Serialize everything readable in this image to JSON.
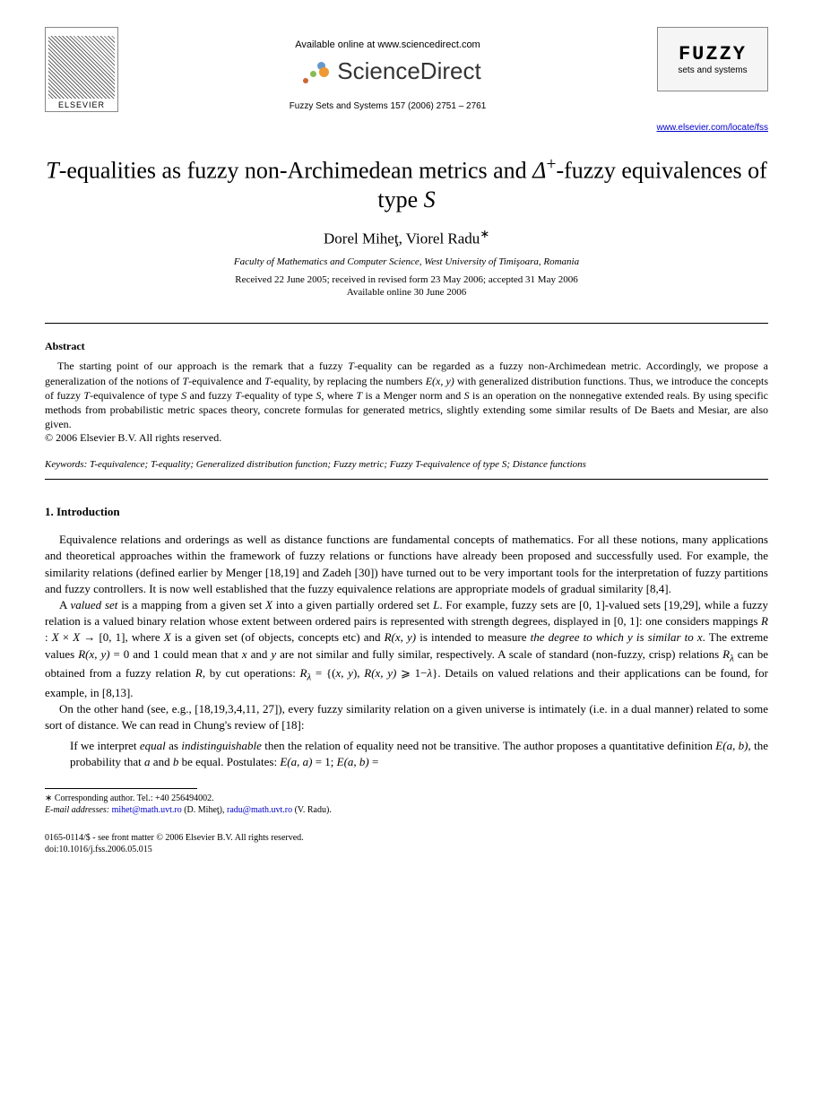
{
  "header": {
    "elsevier_label": "ELSEVIER",
    "available_online": "Available online at www.sciencedirect.com",
    "sciencedirect_label": "ScienceDirect",
    "journal_citation": "Fuzzy Sets and Systems 157 (2006) 2751 – 2761",
    "journal_logo_main": "FUZZY",
    "journal_logo_sub": "sets and systems",
    "journal_url": "www.elsevier.com/locate/fss",
    "sd_dot_colors": [
      "#6699cc",
      "#88bb55",
      "#ee9933",
      "#cc6633"
    ]
  },
  "article": {
    "title_html": "<span class=\"italic\">T</span>-equalities as fuzzy non-Archimedean metrics and <span class=\"italic\">Δ</span><sup>+</sup>-fuzzy equivalences of type <span class=\"italic\">S</span>",
    "authors_html": "Dorel Miheţ, Viorel Radu<sup>∗</sup>",
    "affiliation": "Faculty of Mathematics and Computer Science, West University of Timişoara, Romania",
    "received": "Received 22 June 2005; received in revised form 23 May 2006; accepted 31 May 2006",
    "available_online": "Available online 30 June 2006"
  },
  "abstract": {
    "heading": "Abstract",
    "text_html": "The starting point of our approach is the remark that a fuzzy <span class=\"italic\">T</span>-equality can be regarded as a fuzzy non-Archimedean metric. Accordingly, we propose a generalization of the notions of <span class=\"italic\">T</span>-equivalence and <span class=\"italic\">T</span>-equality, by replacing the numbers <span class=\"italic\">E(x, y)</span> with generalized distribution functions. Thus, we introduce the concepts of fuzzy <span class=\"italic\">T</span>-equivalence of type <span class=\"italic\">S</span> and fuzzy <span class=\"italic\">T</span>-equality of type <span class=\"italic\">S</span>, where <span class=\"italic\">T</span> is a Menger norm and <span class=\"italic\">S</span> is an operation on the nonnegative extended reals. By using specific methods from probabilistic metric spaces theory, concrete formulas for generated metrics, slightly extending some similar results of De Baets and Mesiar, are also given.",
    "copyright": "© 2006 Elsevier B.V. All rights reserved.",
    "keywords_html": "<span class=\"italic\">Keywords:</span> <span class=\"italic\">T</span>-equivalence; <span class=\"italic\">T</span>-equality; Generalized distribution function; Fuzzy metric; Fuzzy <span class=\"italic\">T</span>-equivalence of type <span class=\"italic\">S</span>; Distance functions"
  },
  "section1": {
    "heading": "1. Introduction",
    "para1_html": "Equivalence relations and orderings as well as distance functions are fundamental concepts of mathematics. For all these notions, many applications and theoretical approaches within the framework of fuzzy relations or functions have already been proposed and successfully used. For example, the similarity relations (defined earlier by Menger [18,19] and Zadeh [30]) have turned out to be very important tools for the interpretation of fuzzy partitions and fuzzy controllers. It is now well established that the fuzzy equivalence relations are appropriate models of gradual similarity [8,4].",
    "para2_html": "A <span class=\"italic\">valued set</span> is a mapping from a given set <span class=\"italic\">X</span> into a given partially ordered set <span class=\"italic\">L</span>. For example, fuzzy sets are [0, 1]-valued sets [19,29], while a fuzzy relation is a valued binary relation whose extent between ordered pairs is represented with strength degrees, displayed in [0, 1]: one considers mappings <span class=\"italic\">R</span> : <span class=\"italic\">X</span> × <span class=\"italic\">X</span> → [0, 1], where <span class=\"italic\">X</span> is a given set (of objects, concepts etc) and <span class=\"italic\">R(x, y)</span> is intended to measure <span class=\"italic\">the degree to which y is similar to x</span>. The extreme values <span class=\"italic\">R(x, y)</span> = 0 and 1 could mean that <span class=\"italic\">x</span> and <span class=\"italic\">y</span> are not similar and fully similar, respectively. A scale of standard (non-fuzzy, crisp) relations <span class=\"italic\">R<sub>λ</sub></span> can be obtained from a fuzzy relation <span class=\"italic\">R</span>, by cut operations: <span class=\"italic\">R<sub>λ</sub></span> = {(<span class=\"italic\">x, y</span>), <span class=\"italic\">R(x, y)</span> ⩾ 1−<span class=\"italic\">λ</span>}. Details on valued relations and their applications can be found, for example, in [8,13].",
    "para3_html": "On the other hand (see, e.g., [18,19,3,4,11, 27]), every fuzzy similarity relation on a given universe is intimately (i.e. in a dual manner) related to some sort of distance. We can read in Chung's review of [18]:",
    "quote_html": "If we interpret <span class=\"italic\">equal</span> as <span class=\"italic\">indistinguishable</span> then the relation of equality need not be transitive. The author proposes a quantitative definition <span class=\"italic\">E(a, b)</span>, the probability that <span class=\"italic\">a</span> and <span class=\"italic\">b</span> be equal. Postulates: <span class=\"italic\">E(a, a)</span> = 1; <span class=\"italic\">E(a, b)</span> ="
  },
  "footnotes": {
    "corresponding": "∗ Corresponding author. Tel.: +40 256494002.",
    "email_label": "E-mail addresses:",
    "email1": "mihet@math.uvt.ro",
    "email1_name": "(D. Miheţ),",
    "email2": "radu@math.uvt.ro",
    "email2_name": "(V. Radu)."
  },
  "bottom": {
    "line1": "0165-0114/$ - see front matter © 2006 Elsevier B.V. All rights reserved.",
    "line2": "doi:10.1016/j.fss.2006.05.015"
  },
  "colors": {
    "text": "#000000",
    "link": "#0000cc",
    "background": "#ffffff"
  }
}
